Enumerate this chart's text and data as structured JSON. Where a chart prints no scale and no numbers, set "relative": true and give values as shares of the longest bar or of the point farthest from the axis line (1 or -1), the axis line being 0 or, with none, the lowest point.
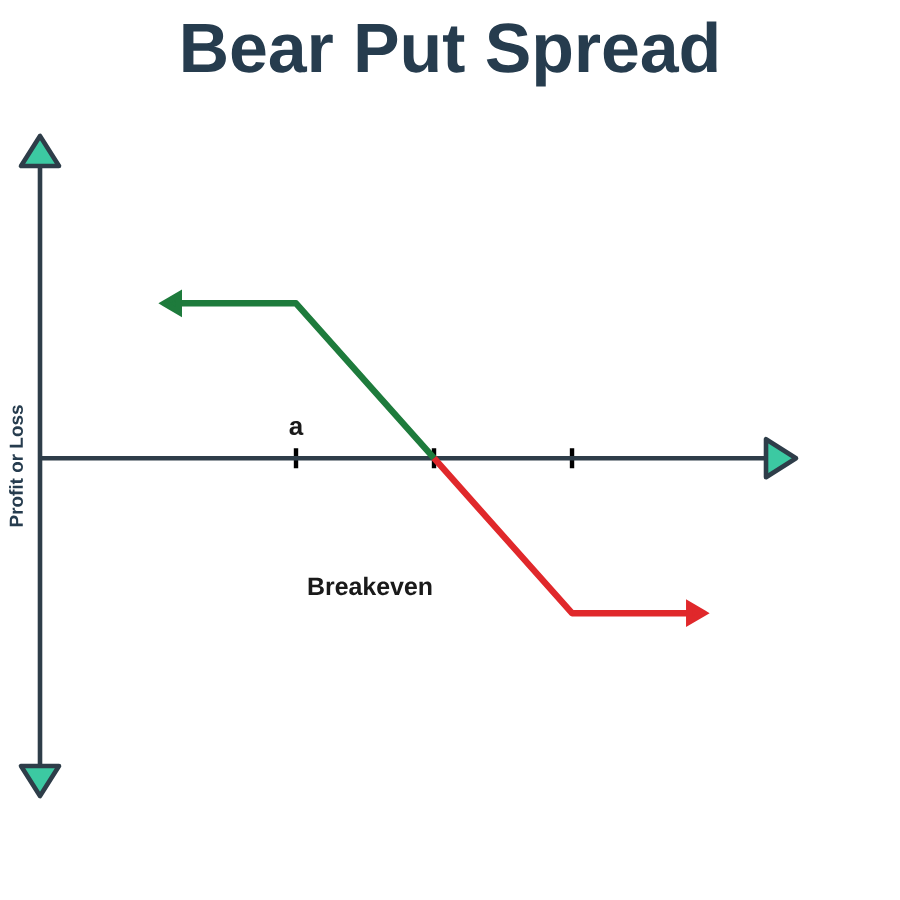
{
  "chart_data": {
    "type": "line",
    "title": "Bear Put Spread",
    "ylabel": "Profit or Loss",
    "categories": [
      null,
      null,
      null,
      null,
      null
    ],
    "relative": true,
    "series": [
      {
        "color": "#1e7b3c",
        "values": [
          1,
          1,
          0,
          null,
          null
        ]
      },
      {
        "color": "#e0282b",
        "values": [
          null,
          null,
          0,
          -1,
          -1
        ]
      }
    ],
    "annotations": [
      "a",
      "Breakeven"
    ],
    "marker": "none",
    "line_style": "solid"
  }
}
